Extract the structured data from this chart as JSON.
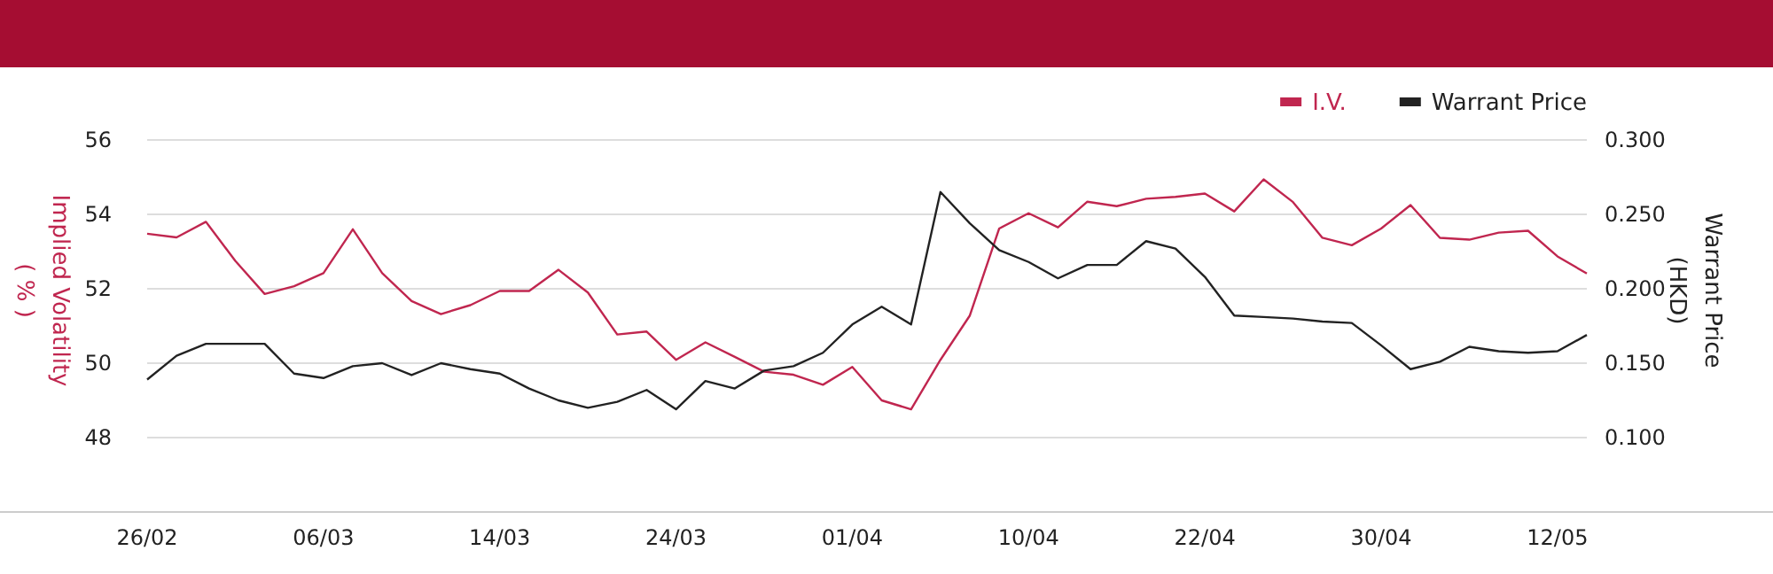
{
  "chart_data": {
    "type": "line",
    "categories": [
      "26/02",
      null,
      null,
      null,
      null,
      null,
      "06/03",
      null,
      null,
      null,
      null,
      null,
      "14/03",
      null,
      null,
      null,
      null,
      null,
      "24/03",
      null,
      null,
      null,
      null,
      null,
      "01/04",
      null,
      null,
      null,
      null,
      null,
      "10/04",
      null,
      null,
      null,
      null,
      null,
      "22/04",
      null,
      null,
      null,
      null,
      null,
      "30/04",
      null,
      null,
      null,
      null,
      null,
      "12/05",
      null
    ],
    "series": [
      {
        "name": "I.V.",
        "color": "#c0264f",
        "values": [
          53.48,
          53.38,
          53.8,
          52.75,
          51.86,
          52.07,
          52.42,
          53.6,
          52.42,
          51.67,
          51.32,
          51.56,
          51.94,
          51.94,
          52.51,
          51.9,
          50.77,
          50.85,
          50.09,
          50.56,
          50.17,
          49.77,
          49.69,
          49.42,
          49.9,
          49.0,
          48.76,
          50.09,
          51.28,
          53.62,
          54.03,
          53.65,
          54.34,
          54.22,
          54.42,
          54.47,
          54.56,
          54.08,
          54.94,
          54.33,
          53.37,
          53.17,
          53.62,
          54.25,
          53.37,
          53.32,
          53.51,
          53.56,
          52.87,
          52.41
        ]
      },
      {
        "name": "Warrant Price",
        "color": "#222222",
        "axis": "y2",
        "values": [
          0.139,
          0.155,
          0.163,
          0.163,
          0.163,
          0.143,
          0.14,
          0.148,
          0.15,
          0.142,
          0.15,
          0.146,
          0.143,
          0.133,
          0.125,
          0.12,
          0.124,
          0.132,
          0.119,
          0.138,
          0.133,
          0.145,
          0.148,
          0.157,
          0.176,
          0.188,
          0.176,
          0.265,
          0.244,
          0.226,
          0.218,
          0.207,
          0.216,
          0.216,
          0.232,
          0.227,
          0.208,
          0.182,
          0.181,
          0.18,
          0.178,
          0.177,
          0.162,
          0.146,
          0.151,
          0.161,
          0.158,
          0.157,
          0.158,
          0.169
        ]
      }
    ],
    "ylabel": "Implied Volatility ( % )",
    "y2label": "Warrant Price (HKD)",
    "ylim": [
      46,
      56
    ],
    "yticks": [
      48,
      50,
      52,
      54,
      56
    ],
    "y2lim": [
      0.05,
      0.3
    ],
    "y2ticks": [
      {
        "value": 0.1,
        "label": "0.100"
      },
      {
        "value": 0.15,
        "label": "0.150"
      },
      {
        "value": 0.2,
        "label": "0.200"
      },
      {
        "value": 0.25,
        "label": "0.250"
      },
      {
        "value": 0.3,
        "label": "0.300"
      }
    ],
    "grid": "y",
    "legend": "top right",
    "marker": "none",
    "line_style": "solid"
  }
}
